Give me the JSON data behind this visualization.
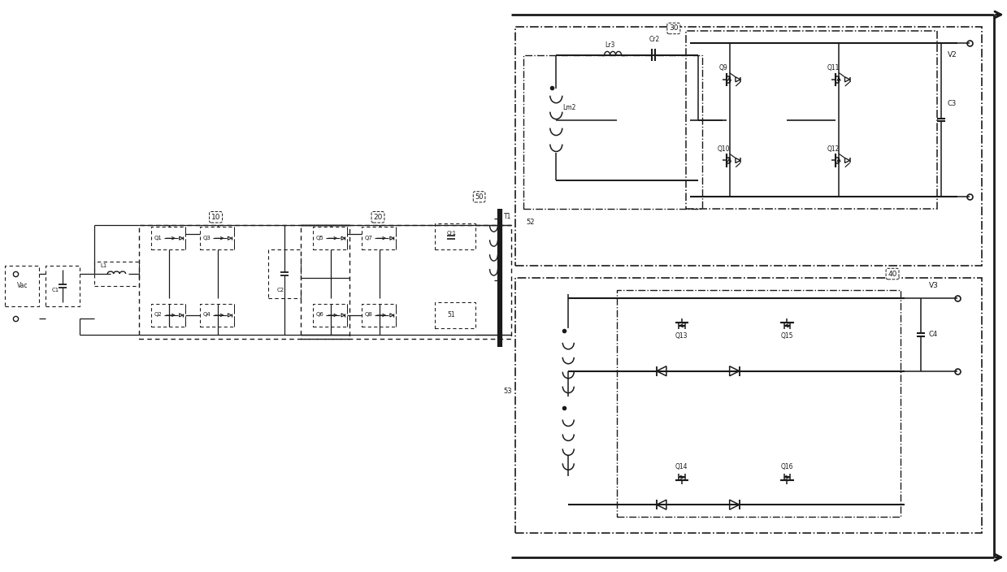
{
  "bg_color": "#ffffff",
  "lc": "#1a1a1a",
  "fig_width": 12.39,
  "fig_height": 7.04,
  "dpi": 100,
  "xlim": [
    0,
    124
  ],
  "ylim": [
    0,
    70
  ]
}
